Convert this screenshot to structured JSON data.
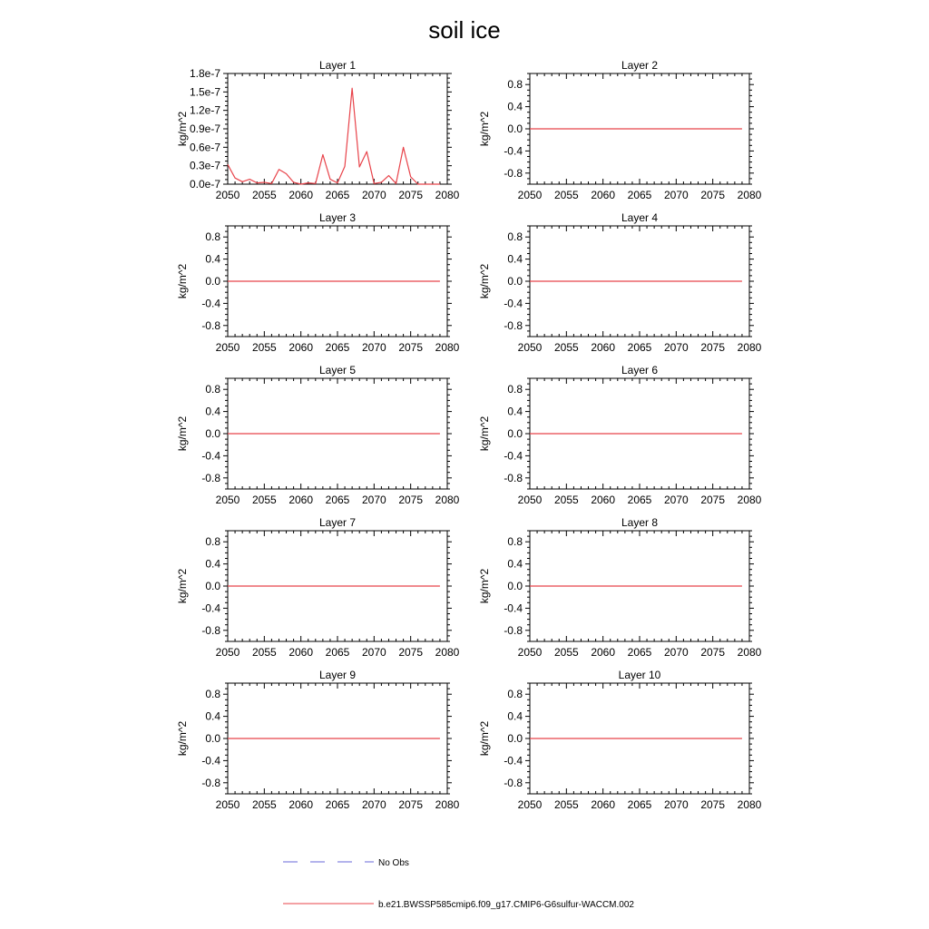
{
  "figure": {
    "title": "soil ice"
  },
  "legend": [
    {
      "label": "No Obs",
      "color": "#6a6ad8",
      "style": "dashed"
    },
    {
      "label": "b.e21.BWSSP585cmip6.f09_g17.CMIP6-G6sulfur-WACCM.002",
      "color": "#e8434a",
      "style": "solid"
    }
  ],
  "chart_data": [
    {
      "type": "line",
      "title": "Layer 1",
      "ylabel": "kg/m^2",
      "xlim": [
        2050,
        2080
      ],
      "xticks": [
        "2050",
        "2055",
        "2060",
        "2065",
        "2070",
        "2075",
        "2080"
      ],
      "ylim": [
        0,
        1.8e-07
      ],
      "yticks": [
        {
          "value": 1.8e-07,
          "label": "1.8e-7"
        },
        {
          "value": 1.5e-07,
          "label": "1.5e-7"
        },
        {
          "value": 1.2e-07,
          "label": "1.2e-7"
        },
        {
          "value": 9e-08,
          "label": "0.9e-7"
        },
        {
          "value": 6e-08,
          "label": "0.6e-7"
        },
        {
          "value": 3e-08,
          "label": "0.3e-7"
        },
        {
          "value": 0.0,
          "label": "0.0e-7"
        }
      ],
      "series": [
        {
          "color": "#e8434a",
          "x": [
            2050,
            2051,
            2052,
            2053,
            2054,
            2055,
            2056,
            2057,
            2058,
            2059,
            2060,
            2061,
            2062,
            2063,
            2064,
            2065,
            2066,
            2067,
            2068,
            2069,
            2070,
            2071,
            2072,
            2073,
            2074,
            2075,
            2076,
            2077,
            2078,
            2079
          ],
          "y": [
            3.2e-08,
            1e-08,
            4e-09,
            8e-09,
            2e-09,
            3e-09,
            1e-09,
            2.4e-08,
            1.7e-08,
            3e-09,
            0,
            2e-09,
            1e-09,
            4.8e-08,
            8e-09,
            2e-09,
            2.9e-08,
            1.56e-07,
            2.8e-08,
            5.3e-08,
            1e-09,
            3e-09,
            1.4e-08,
            1e-09,
            6e-08,
            1.2e-08,
            0,
            0,
            0,
            0
          ]
        }
      ]
    },
    {
      "type": "line",
      "title": "Layer 2",
      "ylabel": "kg/m^2",
      "xlim": [
        2050,
        2080
      ],
      "xticks": [
        "2050",
        "2055",
        "2060",
        "2065",
        "2070",
        "2075",
        "2080"
      ],
      "ylim": [
        -1,
        1
      ],
      "yticks": [
        {
          "value": 0.8,
          "label": "0.8"
        },
        {
          "value": 0.4,
          "label": "0.4"
        },
        {
          "value": 0.0,
          "label": "0.0"
        },
        {
          "value": -0.4,
          "label": "-0.4"
        },
        {
          "value": -0.8,
          "label": "-0.8"
        }
      ],
      "series": [
        {
          "color": "#e8434a",
          "x": [
            2050,
            2079
          ],
          "y": [
            0,
            0
          ]
        }
      ]
    },
    {
      "type": "line",
      "title": "Layer 3",
      "ylabel": "kg/m^2",
      "xlim": [
        2050,
        2080
      ],
      "xticks": [
        "2050",
        "2055",
        "2060",
        "2065",
        "2070",
        "2075",
        "2080"
      ],
      "ylim": [
        -1,
        1
      ],
      "yticks": [
        {
          "value": 0.8,
          "label": "0.8"
        },
        {
          "value": 0.4,
          "label": "0.4"
        },
        {
          "value": 0.0,
          "label": "0.0"
        },
        {
          "value": -0.4,
          "label": "-0.4"
        },
        {
          "value": -0.8,
          "label": "-0.8"
        }
      ],
      "series": [
        {
          "color": "#e8434a",
          "x": [
            2050,
            2079
          ],
          "y": [
            0,
            0
          ]
        }
      ]
    },
    {
      "type": "line",
      "title": "Layer 4",
      "ylabel": "kg/m^2",
      "xlim": [
        2050,
        2080
      ],
      "xticks": [
        "2050",
        "2055",
        "2060",
        "2065",
        "2070",
        "2075",
        "2080"
      ],
      "ylim": [
        -1,
        1
      ],
      "yticks": [
        {
          "value": 0.8,
          "label": "0.8"
        },
        {
          "value": 0.4,
          "label": "0.4"
        },
        {
          "value": 0.0,
          "label": "0.0"
        },
        {
          "value": -0.4,
          "label": "-0.4"
        },
        {
          "value": -0.8,
          "label": "-0.8"
        }
      ],
      "series": [
        {
          "color": "#e8434a",
          "x": [
            2050,
            2079
          ],
          "y": [
            0,
            0
          ]
        }
      ]
    },
    {
      "type": "line",
      "title": "Layer 5",
      "ylabel": "kg/m^2",
      "xlim": [
        2050,
        2080
      ],
      "xticks": [
        "2050",
        "2055",
        "2060",
        "2065",
        "2070",
        "2075",
        "2080"
      ],
      "ylim": [
        -1,
        1
      ],
      "yticks": [
        {
          "value": 0.8,
          "label": "0.8"
        },
        {
          "value": 0.4,
          "label": "0.4"
        },
        {
          "value": 0.0,
          "label": "0.0"
        },
        {
          "value": -0.4,
          "label": "-0.4"
        },
        {
          "value": -0.8,
          "label": "-0.8"
        }
      ],
      "series": [
        {
          "color": "#e8434a",
          "x": [
            2050,
            2079
          ],
          "y": [
            0,
            0
          ]
        }
      ]
    },
    {
      "type": "line",
      "title": "Layer 6",
      "ylabel": "kg/m^2",
      "xlim": [
        2050,
        2080
      ],
      "xticks": [
        "2050",
        "2055",
        "2060",
        "2065",
        "2070",
        "2075",
        "2080"
      ],
      "ylim": [
        -1,
        1
      ],
      "yticks": [
        {
          "value": 0.8,
          "label": "0.8"
        },
        {
          "value": 0.4,
          "label": "0.4"
        },
        {
          "value": 0.0,
          "label": "0.0"
        },
        {
          "value": -0.4,
          "label": "-0.4"
        },
        {
          "value": -0.8,
          "label": "-0.8"
        }
      ],
      "series": [
        {
          "color": "#e8434a",
          "x": [
            2050,
            2079
          ],
          "y": [
            0,
            0
          ]
        }
      ]
    },
    {
      "type": "line",
      "title": "Layer 7",
      "ylabel": "kg/m^2",
      "xlim": [
        2050,
        2080
      ],
      "xticks": [
        "2050",
        "2055",
        "2060",
        "2065",
        "2070",
        "2075",
        "2080"
      ],
      "ylim": [
        -1,
        1
      ],
      "yticks": [
        {
          "value": 0.8,
          "label": "0.8"
        },
        {
          "value": 0.4,
          "label": "0.4"
        },
        {
          "value": 0.0,
          "label": "0.0"
        },
        {
          "value": -0.4,
          "label": "-0.4"
        },
        {
          "value": -0.8,
          "label": "-0.8"
        }
      ],
      "series": [
        {
          "color": "#e8434a",
          "x": [
            2050,
            2079
          ],
          "y": [
            0,
            0
          ]
        }
      ]
    },
    {
      "type": "line",
      "title": "Layer 8",
      "ylabel": "kg/m^2",
      "xlim": [
        2050,
        2080
      ],
      "xticks": [
        "2050",
        "2055",
        "2060",
        "2065",
        "2070",
        "2075",
        "2080"
      ],
      "ylim": [
        -1,
        1
      ],
      "yticks": [
        {
          "value": 0.8,
          "label": "0.8"
        },
        {
          "value": 0.4,
          "label": "0.4"
        },
        {
          "value": 0.0,
          "label": "0.0"
        },
        {
          "value": -0.4,
          "label": "-0.4"
        },
        {
          "value": -0.8,
          "label": "-0.8"
        }
      ],
      "series": [
        {
          "color": "#e8434a",
          "x": [
            2050,
            2079
          ],
          "y": [
            0,
            0
          ]
        }
      ]
    },
    {
      "type": "line",
      "title": "Layer 9",
      "ylabel": "kg/m^2",
      "xlim": [
        2050,
        2080
      ],
      "xticks": [
        "2050",
        "2055",
        "2060",
        "2065",
        "2070",
        "2075",
        "2080"
      ],
      "ylim": [
        -1,
        1
      ],
      "yticks": [
        {
          "value": 0.8,
          "label": "0.8"
        },
        {
          "value": 0.4,
          "label": "0.4"
        },
        {
          "value": 0.0,
          "label": "0.0"
        },
        {
          "value": -0.4,
          "label": "-0.4"
        },
        {
          "value": -0.8,
          "label": "-0.8"
        }
      ],
      "series": [
        {
          "color": "#e8434a",
          "x": [
            2050,
            2079
          ],
          "y": [
            0,
            0
          ]
        }
      ]
    },
    {
      "type": "line",
      "title": "Layer 10",
      "ylabel": "kg/m^2",
      "xlim": [
        2050,
        2080
      ],
      "xticks": [
        "2050",
        "2055",
        "2060",
        "2065",
        "2070",
        "2075",
        "2080"
      ],
      "ylim": [
        -1,
        1
      ],
      "yticks": [
        {
          "value": 0.8,
          "label": "0.8"
        },
        {
          "value": 0.4,
          "label": "0.4"
        },
        {
          "value": 0.0,
          "label": "0.0"
        },
        {
          "value": -0.4,
          "label": "-0.4"
        },
        {
          "value": -0.8,
          "label": "-0.8"
        }
      ],
      "series": [
        {
          "color": "#e8434a",
          "x": [
            2050,
            2079
          ],
          "y": [
            0,
            0
          ]
        }
      ]
    }
  ]
}
